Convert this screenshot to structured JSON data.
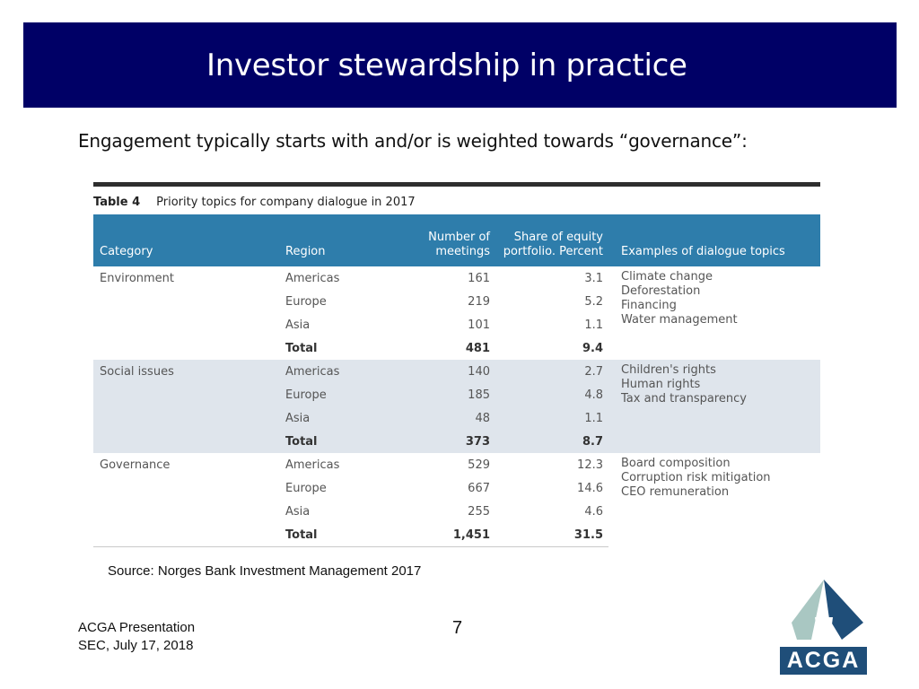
{
  "slide": {
    "title": "Investor stewardship in practice",
    "subtitle": "Engagement typically starts with and/or is weighted towards “governance”:",
    "source": "Source: Norges Bank Investment Management 2017",
    "footer_line1": "ACGA Presentation",
    "footer_line2": "SEC, July 17, 2018",
    "page_number": "7",
    "logo_text": "ACGA"
  },
  "table": {
    "label": "Table 4",
    "caption": "Priority topics for company dialogue in 2017",
    "headers": {
      "category": "Category",
      "region": "Region",
      "meetings_line1": "Number of",
      "meetings_line2": "meetings",
      "share_line1": "Share of equity",
      "share_line2": "portfolio. Percent",
      "examples": "Examples of dialogue topics"
    },
    "groups": [
      {
        "category": "Environment",
        "rows": [
          {
            "region": "Americas",
            "meetings": "161",
            "share": "3.1"
          },
          {
            "region": "Europe",
            "meetings": "219",
            "share": "5.2"
          },
          {
            "region": "Asia",
            "meetings": "101",
            "share": "1.1"
          },
          {
            "region": "Total",
            "meetings": "481",
            "share": "9.4"
          }
        ],
        "examples": [
          "Climate change",
          "Deforestation",
          "Financing",
          "Water management"
        ]
      },
      {
        "category": "Social issues",
        "rows": [
          {
            "region": "Americas",
            "meetings": "140",
            "share": "2.7"
          },
          {
            "region": "Europe",
            "meetings": "185",
            "share": "4.8"
          },
          {
            "region": "Asia",
            "meetings": "48",
            "share": "1.1"
          },
          {
            "region": "Total",
            "meetings": "373",
            "share": "8.7"
          }
        ],
        "examples": [
          "Children's rights",
          "Human rights",
          "Tax and transparency"
        ]
      },
      {
        "category": "Governance",
        "rows": [
          {
            "region": "Americas",
            "meetings": "529",
            "share": "12.3"
          },
          {
            "region": "Europe",
            "meetings": "667",
            "share": "14.6"
          },
          {
            "region": "Asia",
            "meetings": "255",
            "share": "4.6"
          },
          {
            "region": "Total",
            "meetings": "1,451",
            "share": "31.5"
          }
        ],
        "examples": [
          "Board composition",
          "Corruption risk mitigation",
          "CEO remuneration"
        ]
      }
    ]
  },
  "colors": {
    "title_bar": "#000066",
    "table_header": "#2e7dab",
    "shaded_band": "#dfe5ec",
    "logo_blue": "#1f4e79"
  }
}
